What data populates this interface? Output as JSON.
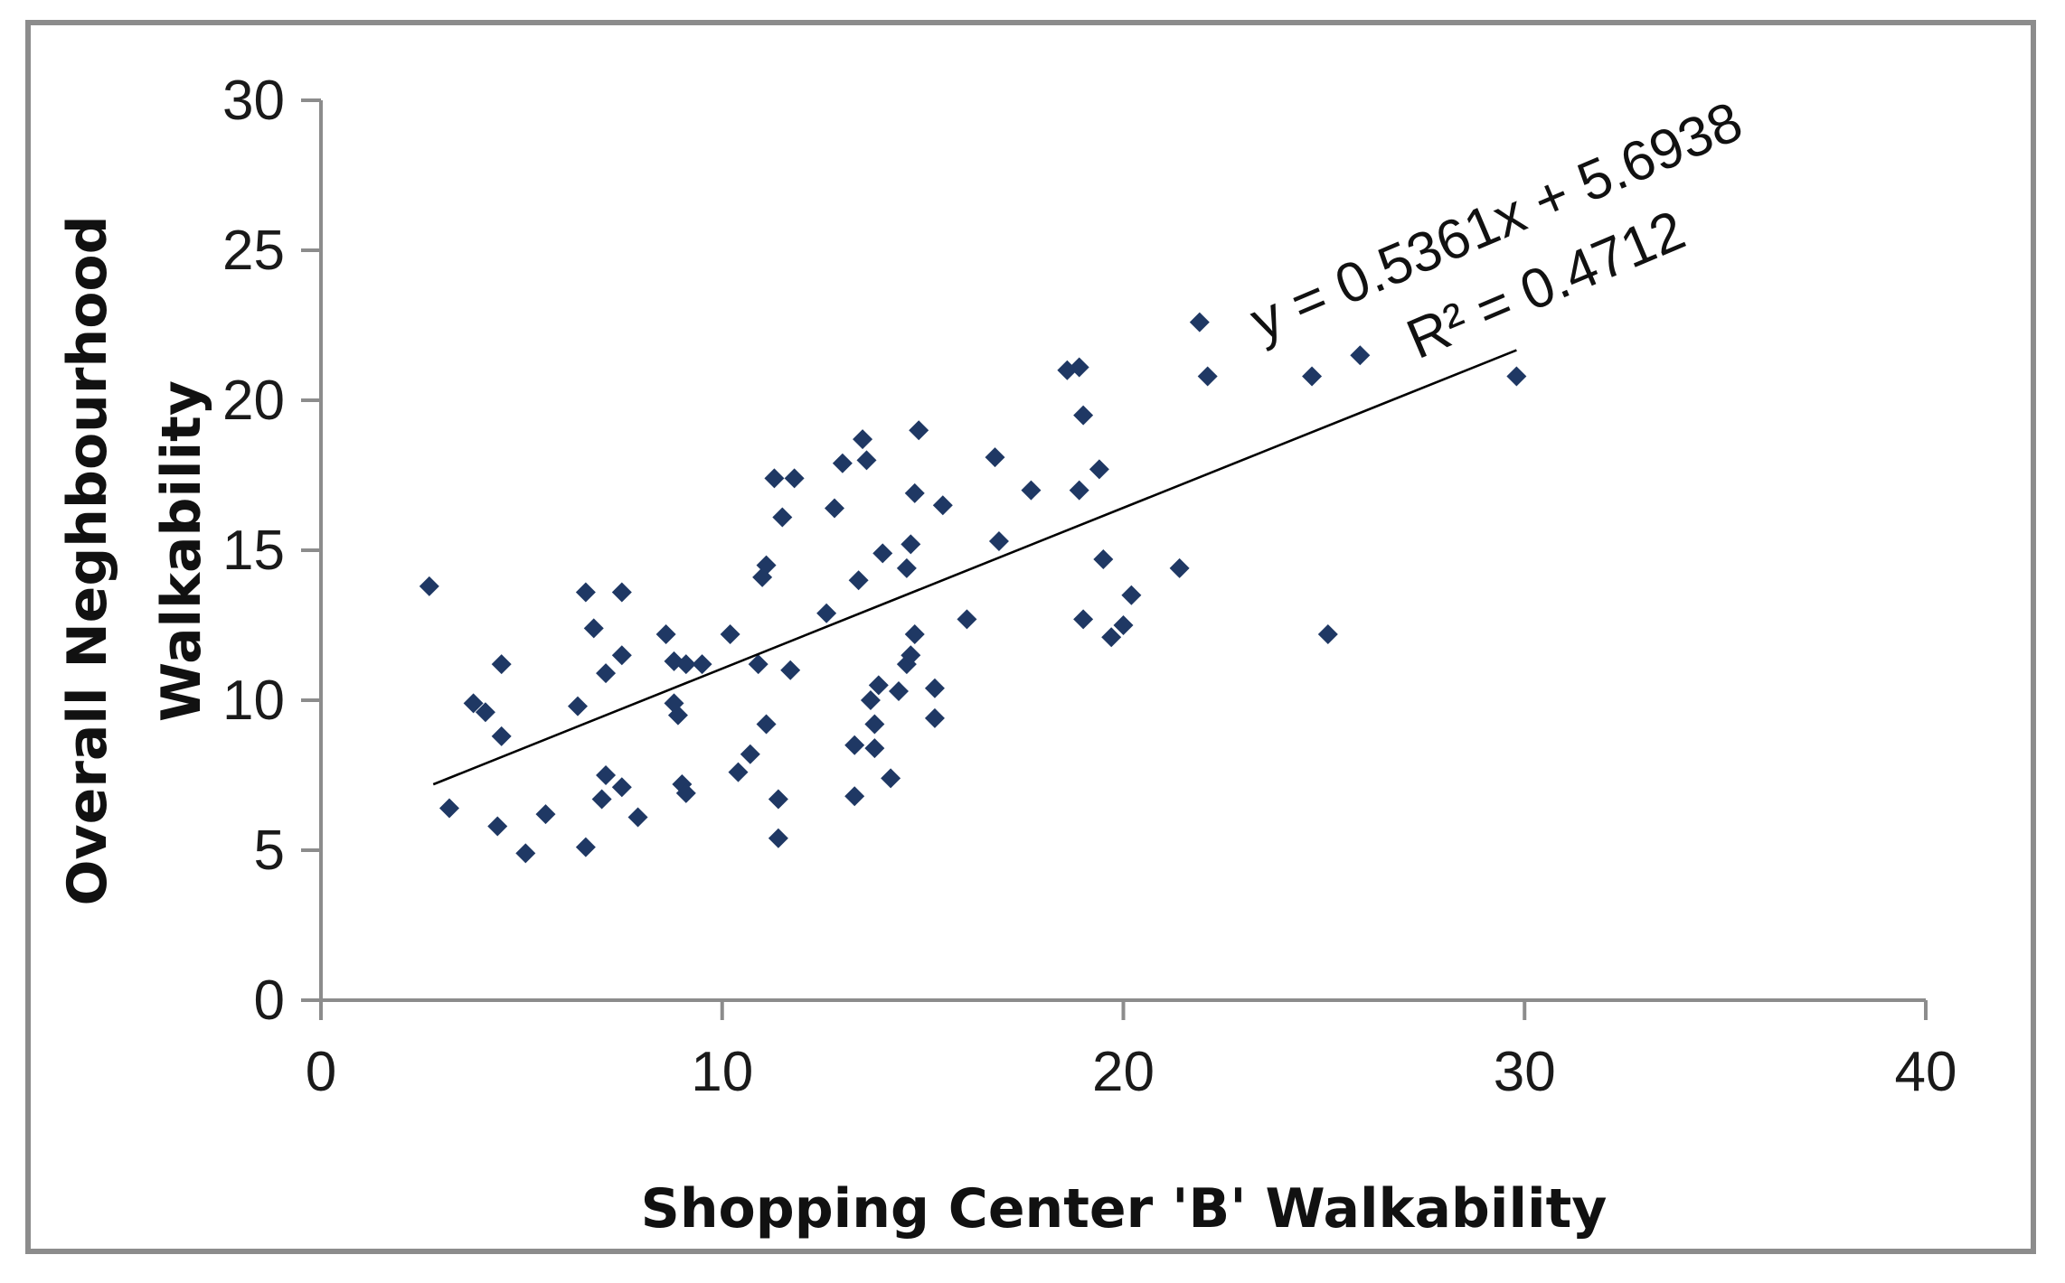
{
  "chart_data": {
    "type": "scatter",
    "title": "",
    "xlabel": "Shopping Center 'B' Walkability",
    "ylabel_lines": [
      "Overall Neghbourhood",
      "Walkability"
    ],
    "xlim": [
      0,
      40
    ],
    "ylim": [
      0,
      30
    ],
    "x_ticks": [
      "0",
      "10",
      "20",
      "30",
      "40"
    ],
    "y_ticks": [
      "0",
      "5",
      "10",
      "15",
      "20",
      "25",
      "30"
    ],
    "grid": false,
    "legend": "none",
    "marker_color": "#1f3864",
    "trendline": {
      "slope": 0.5361,
      "intercept": 5.6938,
      "x_range": [
        2.8,
        29.8
      ],
      "equation_label": "y = 0.5361x + 5.6938",
      "r2_label": "R² = 0.4712"
    },
    "series": [
      {
        "points": [
          [
            2.7,
            13.8
          ],
          [
            3.2,
            6.4
          ],
          [
            3.8,
            9.9
          ],
          [
            4.1,
            9.6
          ],
          [
            4.4,
            5.8
          ],
          [
            4.5,
            8.8
          ],
          [
            4.5,
            11.2
          ],
          [
            5.1,
            4.9
          ],
          [
            5.6,
            6.2
          ],
          [
            6.4,
            9.8
          ],
          [
            6.6,
            5.1
          ],
          [
            6.6,
            13.6
          ],
          [
            6.8,
            12.4
          ],
          [
            7.0,
            6.7
          ],
          [
            7.1,
            7.5
          ],
          [
            7.1,
            10.9
          ],
          [
            7.5,
            7.1
          ],
          [
            7.5,
            11.5
          ],
          [
            7.5,
            13.6
          ],
          [
            7.9,
            6.1
          ],
          [
            8.6,
            12.2
          ],
          [
            8.8,
            9.9
          ],
          [
            8.8,
            11.3
          ],
          [
            8.9,
            9.5
          ],
          [
            9.0,
            7.2
          ],
          [
            9.1,
            6.9
          ],
          [
            9.1,
            11.2
          ],
          [
            9.5,
            11.2
          ],
          [
            10.2,
            12.2
          ],
          [
            10.4,
            7.6
          ],
          [
            10.7,
            8.2
          ],
          [
            10.9,
            11.2
          ],
          [
            11.0,
            14.1
          ],
          [
            11.1,
            9.2
          ],
          [
            11.1,
            14.5
          ],
          [
            11.3,
            17.4
          ],
          [
            11.4,
            5.4
          ],
          [
            11.4,
            6.7
          ],
          [
            11.5,
            16.1
          ],
          [
            11.7,
            11.0
          ],
          [
            11.8,
            17.4
          ],
          [
            12.6,
            12.9
          ],
          [
            12.8,
            16.4
          ],
          [
            13.0,
            17.9
          ],
          [
            13.3,
            6.8
          ],
          [
            13.3,
            8.5
          ],
          [
            13.4,
            14.0
          ],
          [
            13.5,
            18.7
          ],
          [
            13.6,
            18.0
          ],
          [
            13.7,
            10.0
          ],
          [
            13.8,
            9.2
          ],
          [
            13.8,
            8.4
          ],
          [
            13.9,
            10.5
          ],
          [
            14.0,
            14.9
          ],
          [
            14.2,
            7.4
          ],
          [
            14.4,
            10.3
          ],
          [
            14.6,
            11.2
          ],
          [
            14.6,
            14.4
          ],
          [
            14.7,
            11.5
          ],
          [
            14.7,
            15.2
          ],
          [
            14.8,
            12.2
          ],
          [
            14.8,
            16.9
          ],
          [
            14.9,
            19.0
          ],
          [
            15.3,
            10.4
          ],
          [
            15.3,
            9.4
          ],
          [
            15.5,
            16.5
          ],
          [
            16.1,
            12.7
          ],
          [
            16.8,
            18.1
          ],
          [
            16.9,
            15.3
          ],
          [
            17.7,
            17.0
          ],
          [
            18.6,
            21.0
          ],
          [
            18.9,
            17.0
          ],
          [
            18.9,
            21.1
          ],
          [
            19.0,
            12.7
          ],
          [
            19.0,
            19.5
          ],
          [
            19.4,
            17.7
          ],
          [
            19.5,
            14.7
          ],
          [
            19.7,
            12.1
          ],
          [
            20.0,
            12.5
          ],
          [
            20.2,
            13.5
          ],
          [
            21.4,
            14.4
          ],
          [
            21.9,
            22.6
          ],
          [
            22.1,
            20.8
          ],
          [
            24.7,
            20.8
          ],
          [
            25.1,
            12.2
          ],
          [
            25.9,
            21.5
          ],
          [
            29.8,
            20.8
          ]
        ]
      }
    ]
  }
}
